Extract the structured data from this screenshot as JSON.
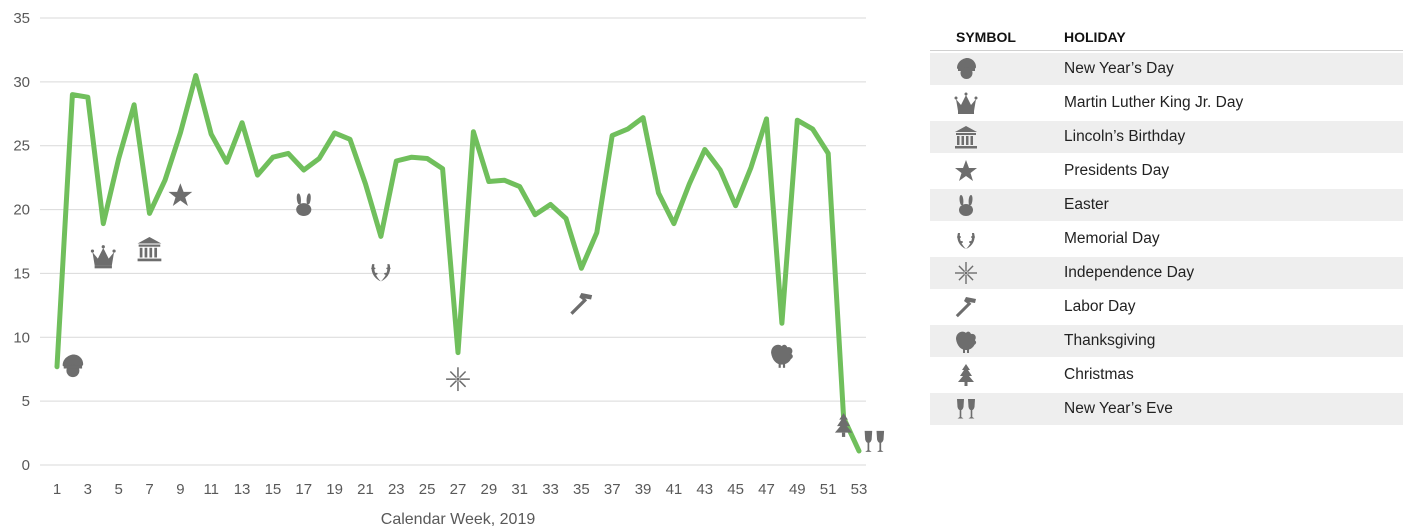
{
  "chart_data": {
    "type": "line",
    "xlabel": "Calendar Week, 2019",
    "ylabel": "",
    "xlim": [
      1,
      53
    ],
    "ylim": [
      0,
      35
    ],
    "yticks": [
      0,
      5,
      10,
      15,
      20,
      25,
      30,
      35
    ],
    "xticks": [
      1,
      3,
      5,
      7,
      9,
      11,
      13,
      15,
      17,
      19,
      21,
      23,
      25,
      27,
      29,
      31,
      33,
      35,
      37,
      39,
      41,
      43,
      45,
      47,
      49,
      51,
      53
    ],
    "grid": true,
    "line_color": "#70bf5c",
    "x": [
      1,
      2,
      3,
      4,
      5,
      6,
      7,
      8,
      9,
      10,
      11,
      12,
      13,
      14,
      15,
      16,
      17,
      18,
      19,
      20,
      21,
      22,
      23,
      24,
      25,
      26,
      27,
      28,
      29,
      30,
      31,
      32,
      33,
      34,
      35,
      36,
      37,
      38,
      39,
      40,
      41,
      42,
      43,
      44,
      45,
      46,
      47,
      48,
      49,
      50,
      51,
      52,
      53
    ],
    "y": [
      7.7,
      29.0,
      28.8,
      18.9,
      24.0,
      28.2,
      19.7,
      22.3,
      26.0,
      30.5,
      25.9,
      23.7,
      26.8,
      22.7,
      24.1,
      24.4,
      23.1,
      24.0,
      26.0,
      25.5,
      22.0,
      17.9,
      23.8,
      24.1,
      24.0,
      23.2,
      8.8,
      26.1,
      22.2,
      22.3,
      21.8,
      19.6,
      20.4,
      19.3,
      15.4,
      18.2,
      25.8,
      26.3,
      27.2,
      21.3,
      18.9,
      22.0,
      24.7,
      23.1,
      20.3,
      23.3,
      27.1,
      11.1,
      27.0,
      26.3,
      24.4,
      3.7,
      1.1
    ],
    "annotations": [
      {
        "icon": "new-years-day-icon",
        "x": 2,
        "y": 7.8
      },
      {
        "icon": "mlk-day-icon",
        "x": 4,
        "y": 16.4
      },
      {
        "icon": "lincolns-birthday-icon",
        "x": 7,
        "y": 17.0
      },
      {
        "icon": "presidents-day-icon",
        "x": 9,
        "y": 21.2
      },
      {
        "icon": "easter-icon",
        "x": 17,
        "y": 20.5
      },
      {
        "icon": "memorial-day-icon",
        "x": 22,
        "y": 15.3
      },
      {
        "icon": "independence-day-icon",
        "x": 27,
        "y": 6.8
      },
      {
        "icon": "labor-day-icon",
        "x": 35,
        "y": 12.7
      },
      {
        "icon": "thanksgiving-icon",
        "x": 48,
        "y": 8.7
      },
      {
        "icon": "christmas-icon",
        "x": 52,
        "y": 3.2
      },
      {
        "icon": "new-years-eve-icon",
        "x": 54,
        "y": 1.9
      }
    ]
  },
  "legend": {
    "symbol_header": "SYMBOL",
    "holiday_header": "HOLIDAY",
    "rows": [
      {
        "icon": "new-years-day-icon",
        "label": "New Year’s Day"
      },
      {
        "icon": "mlk-day-icon",
        "label": "Martin Luther King Jr. Day"
      },
      {
        "icon": "lincolns-birthday-icon",
        "label": "Lincoln’s Birthday"
      },
      {
        "icon": "presidents-day-icon",
        "label": "Presidents Day"
      },
      {
        "icon": "easter-icon",
        "label": "Easter"
      },
      {
        "icon": "memorial-day-icon",
        "label": "Memorial Day"
      },
      {
        "icon": "independence-day-icon",
        "label": "Independence Day"
      },
      {
        "icon": "labor-day-icon",
        "label": "Labor Day"
      },
      {
        "icon": "thanksgiving-icon",
        "label": "Thanksgiving"
      },
      {
        "icon": "christmas-icon",
        "label": "Christmas"
      },
      {
        "icon": "new-years-eve-icon",
        "label": "New Year’s Eve"
      }
    ]
  }
}
